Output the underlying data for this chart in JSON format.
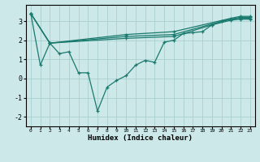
{
  "xlabel": "Humidex (Indice chaleur)",
  "line_color": "#1a7a6e",
  "bg_color": "#cce8e8",
  "grid_color": "#aacfcf",
  "xlim": [
    -0.5,
    23.5
  ],
  "ylim": [
    -2.5,
    3.85
  ],
  "yticks": [
    -2,
    -1,
    0,
    1,
    2,
    3
  ],
  "xticks": [
    0,
    1,
    2,
    3,
    4,
    5,
    6,
    7,
    8,
    9,
    10,
    11,
    12,
    13,
    14,
    15,
    16,
    17,
    18,
    19,
    20,
    21,
    22,
    23
  ],
  "lines": [
    {
      "x": [
        0,
        1,
        2,
        3,
        4,
        5,
        6,
        7,
        8,
        9,
        10,
        11,
        12,
        13,
        14,
        15,
        16,
        17,
        18,
        19,
        20,
        21,
        22,
        23
      ],
      "y": [
        3.4,
        0.7,
        1.85,
        1.3,
        1.4,
        0.3,
        0.3,
        -1.7,
        -0.45,
        -0.1,
        0.15,
        0.7,
        0.95,
        0.85,
        1.9,
        2.0,
        2.35,
        2.4,
        2.45,
        2.8,
        3.0,
        3.1,
        3.15,
        3.15
      ]
    },
    {
      "x": [
        0,
        2,
        10,
        15,
        19,
        21,
        22,
        23
      ],
      "y": [
        3.4,
        1.85,
        2.1,
        2.2,
        2.8,
        3.05,
        3.1,
        3.1
      ]
    },
    {
      "x": [
        0,
        2,
        10,
        15,
        19,
        21,
        22,
        23
      ],
      "y": [
        3.4,
        1.85,
        2.2,
        2.3,
        2.85,
        3.1,
        3.2,
        3.2
      ]
    },
    {
      "x": [
        0,
        2,
        10,
        15,
        21,
        22,
        23
      ],
      "y": [
        3.4,
        1.85,
        2.3,
        2.45,
        3.15,
        3.25,
        3.25
      ]
    }
  ]
}
